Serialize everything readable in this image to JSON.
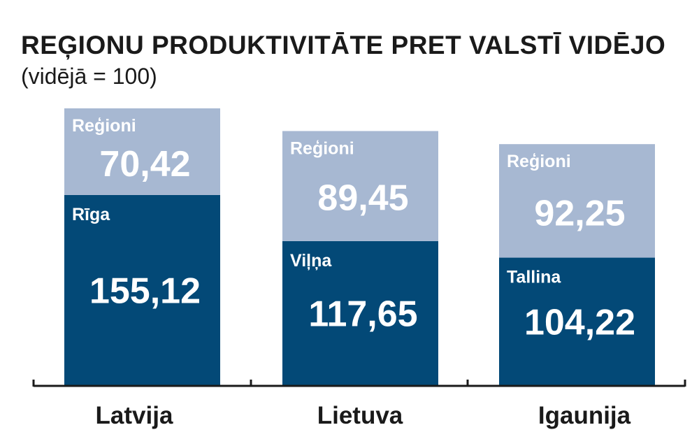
{
  "chart_data": {
    "type": "bar",
    "stacked": true,
    "title": "REĢIONU PRODUKTIVITĀTE PRET VALSTĪ VIDĒJO",
    "subtitle": "(vidējā = 100)",
    "categories": [
      "Latvija",
      "Lietuva",
      "Igaunija"
    ],
    "series": [
      {
        "segment_labels": [
          "Rīga",
          "Viļņa",
          "Tallina"
        ],
        "values": [
          155.12,
          117.65,
          104.22
        ],
        "value_labels": [
          "155,12",
          "117,65",
          "104,22"
        ],
        "color": "#034977"
      },
      {
        "segment_labels": [
          "Reģioni",
          "Reģioni",
          "Reģioni"
        ],
        "values": [
          70.42,
          89.45,
          92.25
        ],
        "value_labels": [
          "70,42",
          "89,45",
          "92,25"
        ],
        "color": "#a7b8d2"
      }
    ],
    "ylim": [
      0,
      225.54
    ],
    "grid": false,
    "legend": "none"
  }
}
